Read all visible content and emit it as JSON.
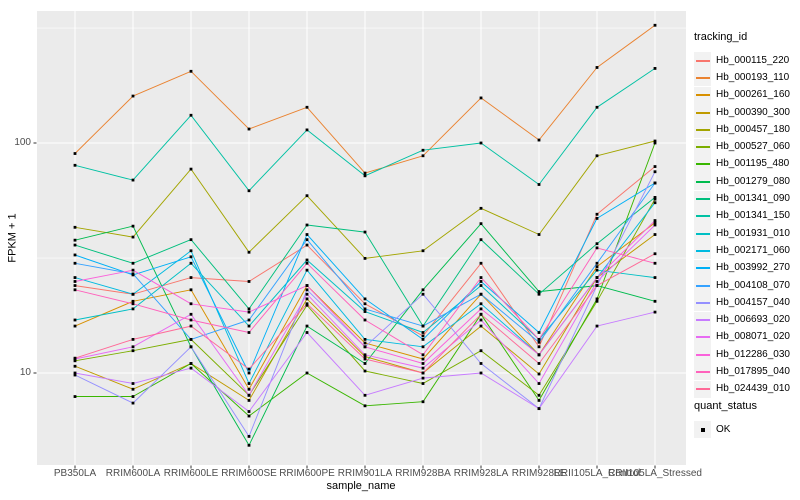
{
  "figure": {
    "background": "#FFFFFF",
    "panel_background": "#EBEBEB",
    "grid_color": "#FFFFFF",
    "axis_text_color": "#4D4D4D",
    "tick_mark_color": "#333333",
    "point_color": "#000000",
    "legend_key_background": "#F2F2F2"
  },
  "chart_data": {
    "type": "line",
    "title": "",
    "xlabel": "sample_name",
    "ylabel": "FPKM + 1",
    "y_scale": "log10",
    "y_ticks": [
      10,
      100
    ],
    "y_minor_gridlines": [
      31.6,
      316
    ],
    "ylim": [
      4,
      380
    ],
    "grid": true,
    "legend_position": "right",
    "legend_title": "tracking_id",
    "quant_legend": {
      "title": "quant_status",
      "items": [
        "OK"
      ],
      "marker": "black-square"
    },
    "categories": [
      "PB350LA",
      "RRIM600LA",
      "RRIM600LE",
      "RRIM600SE",
      "RRIM600PE",
      "RRIM901LA",
      "RRIM928BA",
      "RRIM928LA",
      "RRIM928LE",
      "RRII105LA_Control",
      "RRII105LA_Stressed"
    ],
    "series": [
      {
        "name": "Hb_000115_220",
        "color": "#F8766D",
        "values": [
          24,
          22,
          26,
          25,
          36,
          20,
          14.5,
          30,
          13,
          49,
          79
        ]
      },
      {
        "name": "Hb_000193_110",
        "color": "#EA8331",
        "values": [
          90,
          160,
          205,
          115,
          143,
          74,
          88,
          157,
          103,
          213,
          325
        ]
      },
      {
        "name": "Hb_000261_160",
        "color": "#D89000",
        "values": [
          16,
          20.5,
          23,
          8.5,
          24,
          13.5,
          11.5,
          22,
          12,
          29,
          45
        ]
      },
      {
        "name": "Hb_000390_300",
        "color": "#C09B00",
        "values": [
          10.7,
          8.5,
          11,
          7.6,
          21,
          11.8,
          10,
          16,
          9.9,
          26,
          40
        ]
      },
      {
        "name": "Hb_000457_180",
        "color": "#A3A500",
        "values": [
          43,
          39,
          77,
          33.5,
          59,
          31.5,
          34,
          52,
          40,
          88,
          102
        ]
      },
      {
        "name": "Hb_000527_060",
        "color": "#7CAE00",
        "values": [
          11.3,
          12.5,
          14,
          8,
          19.7,
          10.2,
          9,
          12.5,
          8,
          20.5,
          57
        ]
      },
      {
        "name": "Hb_001195_480",
        "color": "#39B600",
        "values": [
          7.9,
          7.9,
          11,
          6.5,
          10,
          7.2,
          7.5,
          18,
          7.6,
          21,
          100
        ]
      },
      {
        "name": "Hb_001279_080",
        "color": "#00BB4E",
        "values": [
          37.8,
          43.5,
          13,
          4.85,
          16,
          11,
          23,
          44.6,
          22.6,
          24,
          20.5
        ]
      },
      {
        "name": "Hb_001341_090",
        "color": "#00BF7D",
        "values": [
          36,
          30,
          38,
          19,
          44,
          41,
          16,
          38,
          22,
          36.5,
          58
        ]
      },
      {
        "name": "Hb_001341_150",
        "color": "#00C1A3",
        "values": [
          80,
          69,
          132,
          62,
          114,
          72,
          93,
          100,
          66,
          143,
          211
        ]
      },
      {
        "name": "Hb_001931_010",
        "color": "#00BFC4",
        "values": [
          17,
          19,
          30,
          16,
          31,
          18.5,
          15,
          24,
          14,
          28,
          26
        ]
      },
      {
        "name": "Hb_002171_060",
        "color": "#00BAE0",
        "values": [
          26,
          22,
          34,
          9,
          28,
          14,
          13,
          20,
          12,
          26,
          55
        ]
      },
      {
        "name": "Hb_003992_270",
        "color": "#00B0F6",
        "values": [
          32.6,
          26.7,
          32,
          10,
          40,
          21,
          14,
          25,
          15,
          47,
          67
        ]
      },
      {
        "name": "Hb_004108_070",
        "color": "#35A2FF",
        "values": [
          30,
          27,
          14,
          17,
          38,
          19,
          16,
          22,
          13.6,
          30,
          67
        ]
      },
      {
        "name": "Hb_004157_040",
        "color": "#9590FF",
        "values": [
          9.8,
          7.4,
          13,
          5.3,
          23,
          13,
          22,
          11,
          7,
          24,
          75
        ]
      },
      {
        "name": "Hb_006693_020",
        "color": "#C77CFF",
        "values": [
          10,
          9,
          10.5,
          6.8,
          15,
          8,
          9.5,
          10,
          7,
          16,
          18.4
        ]
      },
      {
        "name": "Hb_008071_020",
        "color": "#E76BF3",
        "values": [
          11.5,
          13,
          18,
          8,
          22,
          12,
          10.5,
          17,
          9,
          25,
          44
        ]
      },
      {
        "name": "Hb_012286_030",
        "color": "#FA62DB",
        "values": [
          25,
          28,
          20,
          18.4,
          24,
          13,
          11,
          19,
          12,
          26,
          46
        ]
      },
      {
        "name": "Hb_017895_040",
        "color": "#FF62BC",
        "values": [
          23,
          20,
          17,
          15,
          30,
          17,
          12,
          26,
          14,
          35,
          30
        ]
      },
      {
        "name": "Hb_024439_010",
        "color": "#FF6A98",
        "values": [
          11.6,
          14,
          16,
          10.4,
          20,
          11.5,
          10,
          18,
          11,
          24,
          33
        ]
      }
    ]
  }
}
